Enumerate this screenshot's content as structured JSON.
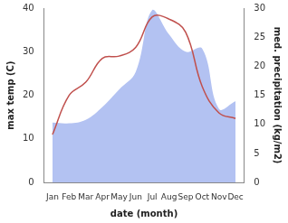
{
  "chart_data": {
    "type": "line",
    "x_label": "date (month)",
    "y_label": "max temp (C)",
    "y2_label": "med. precipitation (kg/m2)",
    "categories": [
      "Jan",
      "Feb",
      "Mar",
      "Apr",
      "May",
      "Jun",
      "Jul",
      "Aug",
      "Sep",
      "Oct",
      "Nov",
      "Dec"
    ],
    "series": [
      {
        "type": "area",
        "axis": "y2",
        "color": "#b3c2f2",
        "values": [
          10.3,
          10.2,
          10.8,
          13,
          16,
          19,
          29.7,
          25.5,
          22.5,
          23,
          12.7,
          14
        ]
      },
      {
        "type": "line",
        "axis": "y",
        "color": "#c0504d",
        "values": [
          11,
          20,
          23,
          28.5,
          29,
          31,
          38,
          37.5,
          34.5,
          22,
          16,
          14.7
        ]
      }
    ],
    "ylim": [
      0,
      40
    ],
    "yticks": [
      0,
      10,
      20,
      30,
      40
    ],
    "y2lim": [
      0,
      30
    ],
    "y2ticks": [
      0,
      5,
      10,
      15,
      20,
      25,
      30
    ],
    "grid": false
  }
}
